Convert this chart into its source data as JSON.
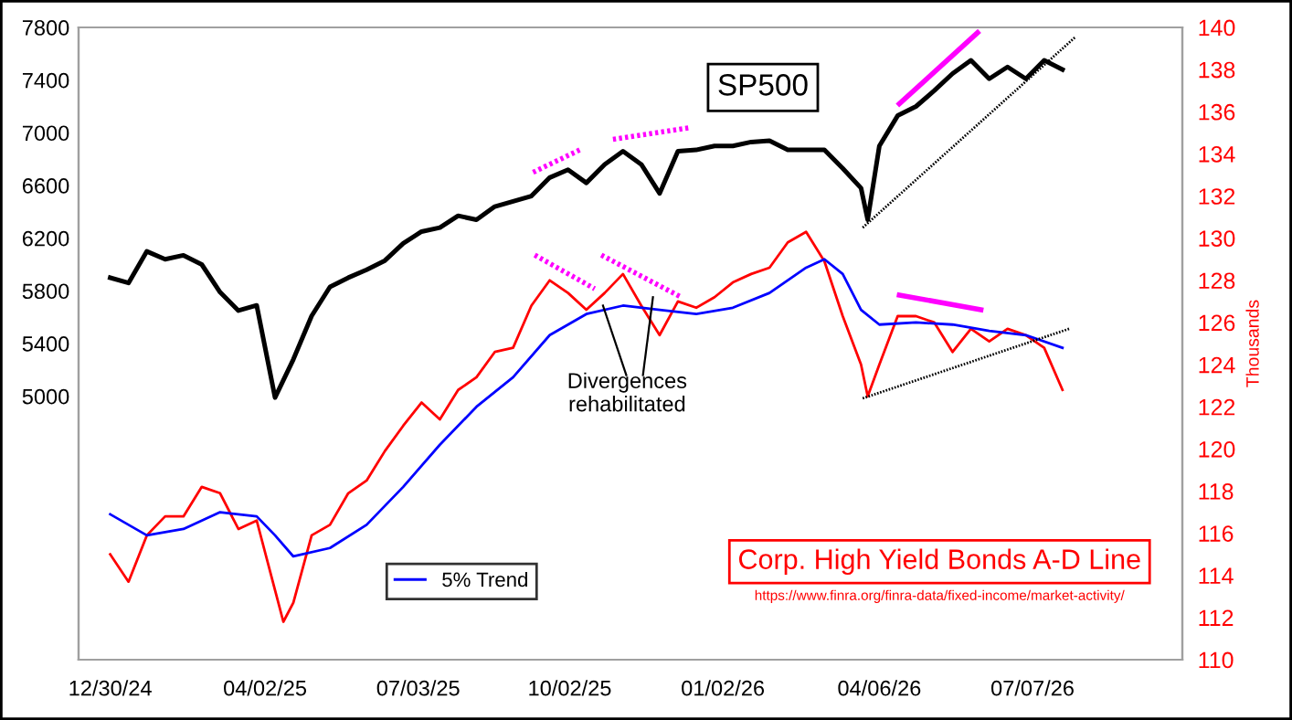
{
  "chart_data": {
    "type": "line",
    "ylim": [
      3000,
      7800
    ],
    "yticks": [
      5000,
      5400,
      5800,
      6200,
      6600,
      7000,
      7400,
      7800
    ],
    "y2lim": [
      110,
      140
    ],
    "y2ticks": [
      110,
      112,
      114,
      116,
      118,
      120,
      122,
      124,
      126,
      128,
      130,
      132,
      134,
      136,
      138,
      140
    ],
    "y2label": "Thousands",
    "xlim": [
      "2024-12-11",
      "2026-10-05"
    ],
    "xticks": [
      {
        "value": "2024-12-30",
        "label": "12/30/24"
      },
      {
        "value": "2025-04-02",
        "label": "04/02/25"
      },
      {
        "value": "2025-07-03",
        "label": "07/03/25"
      },
      {
        "value": "2025-10-02",
        "label": "10/02/25"
      },
      {
        "value": "2026-01-02",
        "label": "01/02/26"
      },
      {
        "value": "2026-04-06",
        "label": "04/06/26"
      },
      {
        "value": "2026-07-07",
        "label": "07/07/26"
      }
    ],
    "grid": false,
    "legend": "bottom left",
    "line_style": "solid",
    "marker": "none",
    "annotations": [
      "Divergences\nrehabilitated",
      "https://www.finra.org/finra-data/fixed-income/market-activity/"
    ],
    "series": [
      {
        "name": "SP500",
        "color": "#000000",
        "x": [
          "2024-12-30",
          "2025-01-10",
          "2025-01-21",
          "2025-02-01",
          "2025-02-12",
          "2025-02-23",
          "2025-03-06",
          "2025-03-17",
          "2025-03-28",
          "2025-04-08",
          "2025-04-19",
          "2025-04-30",
          "2025-05-11",
          "2025-05-22",
          "2025-06-02",
          "2025-06-13",
          "2025-06-24",
          "2025-07-05",
          "2025-07-16",
          "2025-07-27",
          "2025-08-07",
          "2025-08-18",
          "2025-08-29",
          "2025-09-09",
          "2025-09-20",
          "2025-10-01",
          "2025-10-12",
          "2025-10-23",
          "2025-11-03",
          "2025-11-14",
          "2025-11-25",
          "2025-12-06",
          "2025-12-17",
          "2025-12-28",
          "2026-01-08",
          "2026-01-19",
          "2026-01-30",
          "2026-02-10",
          "2026-02-21",
          "2026-03-04",
          "2026-03-15",
          "2026-03-26",
          "2026-03-30",
          "2026-04-06",
          "2026-04-17",
          "2026-04-28",
          "2026-05-09",
          "2026-05-20",
          "2026-05-31",
          "2026-06-11",
          "2026-06-22",
          "2026-07-03",
          "2026-07-14",
          "2026-07-25"
        ],
        "values": [
          5900,
          5860,
          6100,
          6040,
          6070,
          6000,
          5790,
          5650,
          5690,
          4990,
          5280,
          5610,
          5830,
          5900,
          5960,
          6030,
          6160,
          6250,
          6280,
          6370,
          6340,
          6440,
          6480,
          6520,
          6660,
          6720,
          6620,
          6760,
          6860,
          6760,
          6540,
          6860,
          6870,
          6900,
          6900,
          6930,
          6940,
          6870,
          6870,
          6870,
          6730,
          6580,
          6340,
          6900,
          7130,
          7200,
          7320,
          7450,
          7550,
          7410,
          7500,
          7410,
          7550,
          7480
        ]
      },
      {
        "name": "Corp. High Yield Bonds A-D Line",
        "color": "#ff0000",
        "axis": "y2",
        "x": [
          "2024-12-30",
          "2025-01-10",
          "2025-01-21",
          "2025-02-01",
          "2025-02-12",
          "2025-02-23",
          "2025-03-06",
          "2025-03-17",
          "2025-03-28",
          "2025-04-08",
          "2025-04-13",
          "2025-04-19",
          "2025-04-30",
          "2025-05-11",
          "2025-05-22",
          "2025-06-02",
          "2025-06-13",
          "2025-06-24",
          "2025-07-05",
          "2025-07-16",
          "2025-07-27",
          "2025-08-07",
          "2025-08-18",
          "2025-08-29",
          "2025-09-09",
          "2025-09-20",
          "2025-10-01",
          "2025-10-12",
          "2025-10-23",
          "2025-11-03",
          "2025-11-14",
          "2025-11-25",
          "2025-12-06",
          "2025-12-17",
          "2025-12-28",
          "2026-01-08",
          "2026-01-19",
          "2026-01-30",
          "2026-02-10",
          "2026-02-21",
          "2026-03-04",
          "2026-03-15",
          "2026-03-26",
          "2026-03-30",
          "2026-04-06",
          "2026-04-17",
          "2026-04-28",
          "2026-05-09",
          "2026-05-20",
          "2026-05-31",
          "2026-06-11",
          "2026-06-22",
          "2026-07-03",
          "2026-07-14",
          "2026-07-25"
        ],
        "values": [
          115.0,
          113.7,
          115.9,
          116.8,
          116.8,
          118.2,
          117.9,
          116.2,
          116.6,
          113.3,
          111.8,
          112.7,
          115.9,
          116.4,
          117.9,
          118.5,
          119.9,
          121.1,
          122.2,
          121.4,
          122.8,
          123.4,
          124.6,
          124.8,
          126.8,
          128.0,
          127.4,
          126.6,
          127.4,
          128.3,
          126.8,
          125.4,
          127.0,
          126.7,
          127.2,
          127.9,
          128.3,
          128.6,
          129.8,
          130.3,
          128.9,
          126.3,
          124.0,
          122.5,
          124.0,
          126.3,
          126.3,
          126.0,
          124.6,
          125.7,
          125.1,
          125.7,
          125.4,
          124.8,
          122.8
        ]
      },
      {
        "name": "5% Trend",
        "color": "#0000ff",
        "axis": "y2",
        "x": [
          "2024-12-30",
          "2025-01-21",
          "2025-02-12",
          "2025-03-06",
          "2025-03-28",
          "2025-04-08",
          "2025-04-19",
          "2025-05-11",
          "2025-06-02",
          "2025-06-24",
          "2025-07-16",
          "2025-08-07",
          "2025-08-29",
          "2025-09-20",
          "2025-10-12",
          "2025-11-03",
          "2025-11-25",
          "2025-12-17",
          "2026-01-08",
          "2026-01-30",
          "2026-02-21",
          "2026-03-04",
          "2026-03-15",
          "2026-03-26",
          "2026-04-06",
          "2026-04-28",
          "2026-05-20",
          "2026-06-11",
          "2026-07-03",
          "2026-07-25"
        ],
        "values": [
          116.9,
          115.9,
          116.2,
          117.0,
          116.8,
          115.9,
          114.9,
          115.3,
          116.4,
          118.2,
          120.2,
          122.0,
          123.4,
          125.4,
          126.4,
          126.8,
          126.6,
          126.4,
          126.7,
          127.4,
          128.6,
          129.0,
          128.3,
          126.6,
          125.9,
          126.0,
          125.9,
          125.6,
          125.4,
          124.8
        ]
      },
      {
        "color": "#ff00ff",
        "line_style": "dotted",
        "x": [
          "2025-09-10",
          "2025-10-08"
        ],
        "values": [
          6700,
          6870
        ]
      },
      {
        "color": "#ff00ff",
        "line_style": "dotted",
        "x": [
          "2025-10-28",
          "2025-12-14"
        ],
        "values": [
          6950,
          7040
        ]
      },
      {
        "color": "#ff00ff",
        "x": [
          "2026-04-18",
          "2026-06-04"
        ],
        "values": [
          7220,
          7760
        ]
      },
      {
        "color": "#000000",
        "line_style": "dotted",
        "x": [
          "2026-03-27",
          "2026-08-02"
        ],
        "values": [
          6280,
          7730
        ]
      },
      {
        "color": "#ff00ff",
        "line_style": "dotted",
        "axis": "y2",
        "x": [
          "2025-09-11",
          "2025-10-17"
        ],
        "values": [
          129.2,
          127.6
        ]
      },
      {
        "color": "#ff00ff",
        "line_style": "dotted",
        "axis": "y2",
        "x": [
          "2025-10-21",
          "2025-12-08"
        ],
        "values": [
          129.2,
          127.2
        ]
      },
      {
        "color": "#ff00ff",
        "axis": "y2",
        "x": [
          "2026-04-18",
          "2026-06-06"
        ],
        "values": [
          127.3,
          126.6
        ]
      },
      {
        "color": "#000000",
        "line_style": "dotted",
        "axis": "y2",
        "x": [
          "2026-03-27",
          "2026-07-29"
        ],
        "values": [
          122.4,
          125.7
        ]
      },
      {
        "color": "#000000",
        "axis": "y2",
        "x": [
          "2025-10-22",
          "2025-11-05"
        ],
        "values": [
          126.8,
          123.5
        ]
      },
      {
        "color": "#000000",
        "axis": "y2",
        "x": [
          "2025-11-21",
          "2025-11-15"
        ],
        "values": [
          127.2,
          123.5
        ]
      }
    ]
  }
}
